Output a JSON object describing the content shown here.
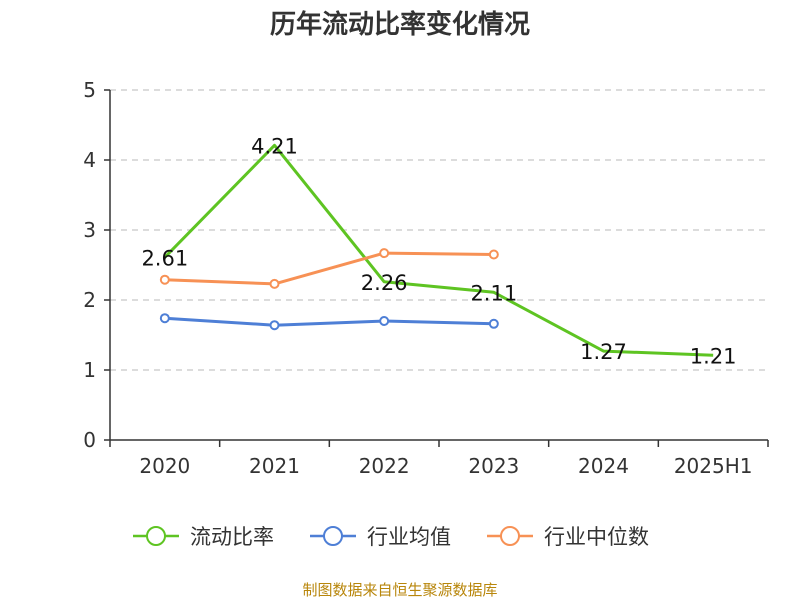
{
  "chart_data": {
    "type": "line",
    "title": "历年流动比率变化情况",
    "categories": [
      "2020",
      "2021",
      "2022",
      "2023",
      "2024",
      "2025H1"
    ],
    "ylim": [
      0,
      5
    ],
    "yticks": [
      "0",
      "1",
      "2",
      "3",
      "4",
      "5"
    ],
    "grid": true,
    "legend_position": "bottom",
    "series": [
      {
        "name": "流动比率",
        "color": "#5ec422",
        "markers": false,
        "show_labels": true,
        "values": [
          2.61,
          4.21,
          2.26,
          2.11,
          1.27,
          1.21
        ],
        "labels": [
          "2.61",
          "4.21",
          "2.26",
          "2.11",
          "1.27",
          "1.21"
        ]
      },
      {
        "name": "行业均值",
        "color": "#4e7fd6",
        "markers": true,
        "show_labels": false,
        "values": [
          1.74,
          1.64,
          1.7,
          1.66,
          null,
          null
        ]
      },
      {
        "name": "行业中位数",
        "color": "#f79155",
        "markers": true,
        "show_labels": false,
        "values": [
          2.29,
          2.23,
          2.67,
          2.65,
          null,
          null
        ]
      }
    ],
    "source": "制图数据来自恒生聚源数据库"
  }
}
